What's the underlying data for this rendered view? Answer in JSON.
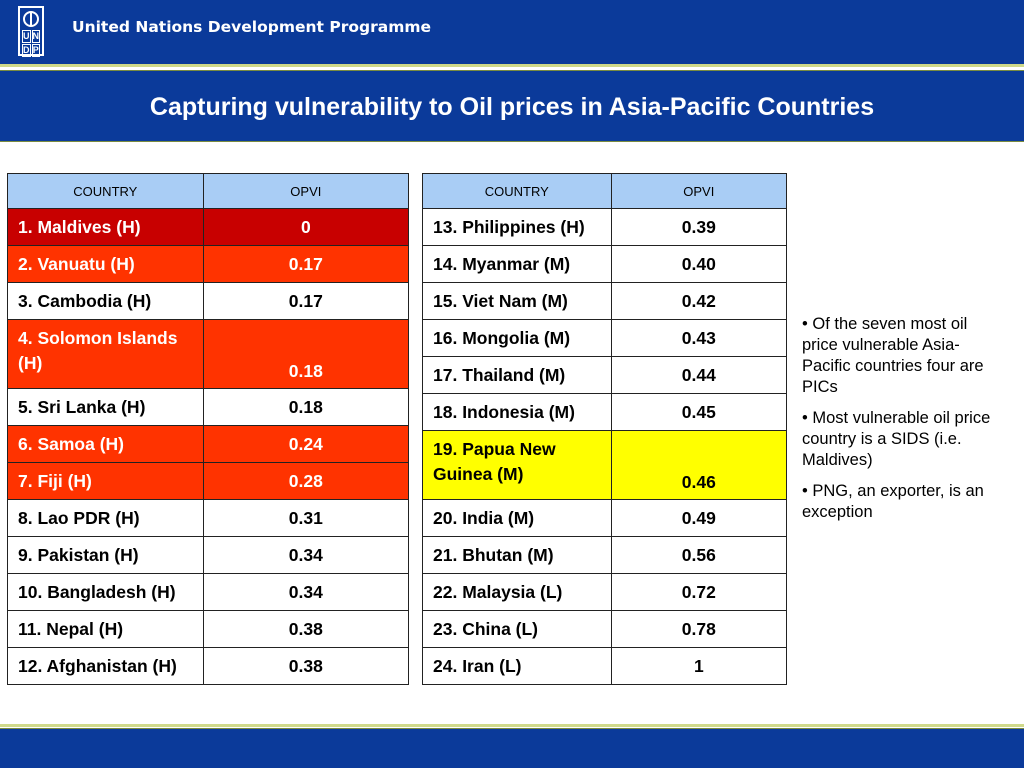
{
  "header": {
    "org_name": "United Nations Development Programme",
    "logo_letters": [
      "U",
      "N",
      "D",
      "P"
    ]
  },
  "slide": {
    "title": "Capturing vulnerability to Oil prices in Asia-Pacific Countries"
  },
  "colors": {
    "header_blue": "#0b3a9a",
    "table_header": "#a9cdf5",
    "rank_1_red": "#c80000",
    "high_vulnerability_orange": "#ff3300",
    "highlight_yellow": "#ffff00"
  },
  "table_left": {
    "col_country": "COUNTRY",
    "col_opvi": "OPVI",
    "rows": [
      {
        "country": "1. Maldives (H)",
        "opvi": "0",
        "highlight": "dark-red"
      },
      {
        "country": "2. Vanuatu (H)",
        "opvi": "0.17",
        "highlight": "orange"
      },
      {
        "country": "3. Cambodia (H)",
        "opvi": "0.17",
        "highlight": "none"
      },
      {
        "country": "4. Solomon Islands (H)",
        "opvi": "0.18",
        "highlight": "orange"
      },
      {
        "country": "5. Sri Lanka (H)",
        "opvi": "0.18",
        "highlight": "none"
      },
      {
        "country": "6. Samoa (H)",
        "opvi": "0.24",
        "highlight": "orange"
      },
      {
        "country": "7. Fiji (H)",
        "opvi": "0.28",
        "highlight": "orange"
      },
      {
        "country": "8. Lao PDR (H)",
        "opvi": "0.31",
        "highlight": "none"
      },
      {
        "country": "9. Pakistan (H)",
        "opvi": "0.34",
        "highlight": "none"
      },
      {
        "country": "10. Bangladesh (H)",
        "opvi": "0.34",
        "highlight": "none"
      },
      {
        "country": "11. Nepal (H)",
        "opvi": "0.38",
        "highlight": "none"
      },
      {
        "country": "12. Afghanistan  (H)",
        "opvi": "0.38",
        "highlight": "none"
      }
    ]
  },
  "table_right": {
    "col_country": "COUNTRY",
    "col_opvi": "OPVI",
    "rows": [
      {
        "country": "13. Philippines (H)",
        "opvi": "0.39",
        "highlight": "none"
      },
      {
        "country": "14. Myanmar (M)",
        "opvi": "0.40",
        "highlight": "none"
      },
      {
        "country": "15. Viet Nam (M)",
        "opvi": "0.42",
        "highlight": "none"
      },
      {
        "country": "16. Mongolia (M)",
        "opvi": "0.43",
        "highlight": "none"
      },
      {
        "country": "17. Thailand (M)",
        "opvi": "0.44",
        "highlight": "none"
      },
      {
        "country": "18. Indonesia (M)",
        "opvi": "0.45",
        "highlight": "none"
      },
      {
        "country": "19. Papua New Guinea (M)",
        "opvi": "0.46",
        "highlight": "yellow"
      },
      {
        "country": "20. India (M)",
        "opvi": "0.49",
        "highlight": "none"
      },
      {
        "country": "21. Bhutan (M)",
        "opvi": "0.56",
        "highlight": "none"
      },
      {
        "country": "22. Malaysia (L)",
        "opvi": "0.72",
        "highlight": "none"
      },
      {
        "country": "23. China (L)",
        "opvi": "0.78",
        "highlight": "none"
      },
      {
        "country": "24. Iran (L)",
        "opvi": "1",
        "highlight": "none"
      }
    ]
  },
  "notes": [
    "•  Of the seven most oil price vulnerable Asia-Pacific countries four are PICs",
    "•  Most vulnerable oil price country is a SIDS (i.e. Maldives)",
    "• PNG, an exporter, is an exception"
  ]
}
